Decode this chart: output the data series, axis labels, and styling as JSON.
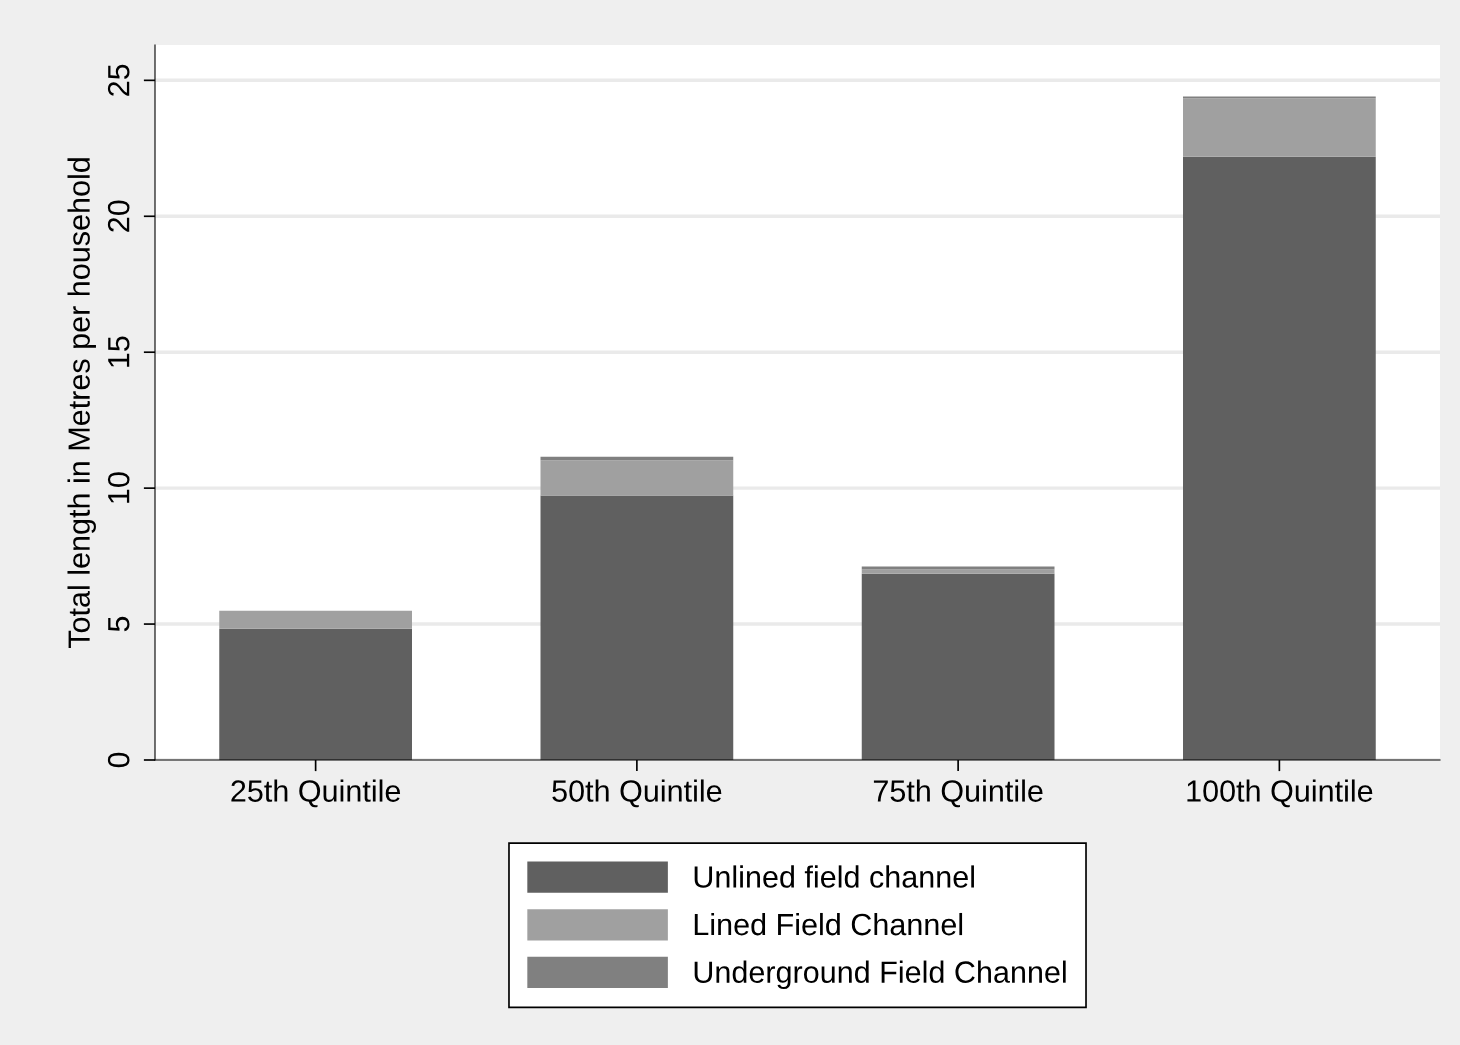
{
  "chart_data": {
    "type": "bar",
    "stacked": true,
    "ylabel": "Total length in Metres per household",
    "categories": [
      "25th Quintile",
      "50th Quintile",
      "75th Quintile",
      "100th Quintile"
    ],
    "series": [
      {
        "name": "Unlined field channel",
        "color": "#606060",
        "values": [
          4.83,
          9.73,
          6.85,
          22.19
        ]
      },
      {
        "name": "Lined Field Channel",
        "color": "#a0a0a0",
        "values": [
          0.66,
          1.3,
          0.16,
          2.15
        ]
      },
      {
        "name": "Underground Field Channel",
        "color": "#808080",
        "values": [
          0,
          0.12,
          0.11,
          0.07
        ]
      }
    ],
    "ylim": [
      0,
      26.3
    ],
    "yticks": [
      0,
      5,
      10,
      15,
      20,
      25
    ],
    "grid": "y",
    "legend": "bottom"
  }
}
